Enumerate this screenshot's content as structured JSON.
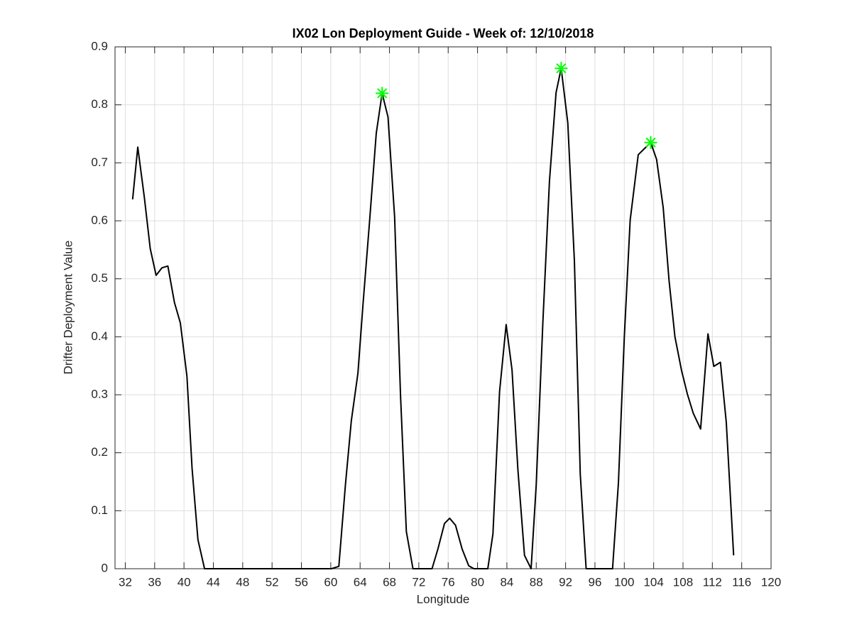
{
  "chart_data": {
    "type": "line",
    "title": "IX02 Lon Deployment Guide - Week of: 12/10/2018",
    "xlabel": "Longitude",
    "ylabel": "Drifter Deployment Value",
    "xlim": [
      30.6,
      120
    ],
    "ylim": [
      0,
      0.9
    ],
    "xticks": [
      32,
      36,
      40,
      44,
      48,
      52,
      56,
      60,
      64,
      68,
      72,
      76,
      80,
      84,
      88,
      92,
      96,
      100,
      104,
      108,
      112,
      116,
      120
    ],
    "yticks": [
      0,
      {
        "value": 0.1,
        "label": "0.1"
      },
      {
        "value": 0.2,
        "label": "0.2"
      },
      {
        "value": 0.3,
        "label": "0.3"
      },
      {
        "value": 0.4,
        "label": "0.4"
      },
      {
        "value": 0.5,
        "label": "0.5"
      },
      {
        "value": 0.6,
        "label": "0.6"
      },
      {
        "value": 0.7,
        "label": "0.7"
      },
      {
        "value": 0.8,
        "label": "0.8"
      },
      {
        "value": 0.9,
        "label": "0.9"
      }
    ],
    "grid": true,
    "series": [
      {
        "color": "#000000",
        "marker": "none",
        "x": [
          33.0,
          33.7,
          34.6,
          35.4,
          36.2,
          37.0,
          37.8,
          38.7,
          39.5,
          40.4,
          41.1,
          41.9,
          42.8,
          46,
          50,
          54,
          58,
          60.1,
          61.1,
          62.0,
          62.8,
          63.7,
          64.4,
          65.3,
          66.2,
          67.0,
          67.8,
          68.7,
          69.5,
          70.3,
          71.2,
          73.8,
          74.6,
          75.5,
          76.2,
          77.0,
          77.9,
          78.8,
          79.5,
          81.4,
          82.1,
          83.0,
          83.9,
          84.7,
          85.5,
          86.4,
          87.3,
          88.0,
          88.9,
          89.8,
          90.7,
          91.4,
          92.3,
          93.2,
          94.0,
          94.8,
          98.4,
          99.2,
          100.0,
          100.8,
          101.9,
          102.7,
          103.6,
          104.4,
          105.3,
          106.1,
          106.9,
          107.8,
          108.6,
          109.4,
          110.4,
          111.4,
          112.2,
          113.1,
          113.9,
          114.9
        ],
        "values": [
          0.637,
          0.727,
          0.64,
          0.552,
          0.506,
          0.519,
          0.522,
          0.459,
          0.424,
          0.332,
          0.173,
          0.05,
          0,
          0,
          0,
          0,
          0,
          0,
          0.004,
          0.145,
          0.255,
          0.337,
          0.457,
          0.601,
          0.751,
          0.82,
          0.779,
          0.607,
          0.301,
          0.064,
          0,
          0,
          0.034,
          0.078,
          0.087,
          0.075,
          0.034,
          0.005,
          0,
          0,
          0.06,
          0.305,
          0.421,
          0.343,
          0.171,
          0.023,
          0,
          0.145,
          0.424,
          0.668,
          0.821,
          0.863,
          0.769,
          0.531,
          0.163,
          0,
          0,
          0.148,
          0.399,
          0.601,
          0.714,
          0.724,
          0.735,
          0.706,
          0.623,
          0.497,
          0.4,
          0.342,
          0.301,
          0.268,
          0.241,
          0.405,
          0.349,
          0.356,
          0.252,
          0.023
        ]
      },
      {
        "color": "#00ff00",
        "marker": "star",
        "x": [
          67.0,
          91.4,
          103.6
        ],
        "values": [
          0.82,
          0.863,
          0.735
        ]
      }
    ]
  }
}
